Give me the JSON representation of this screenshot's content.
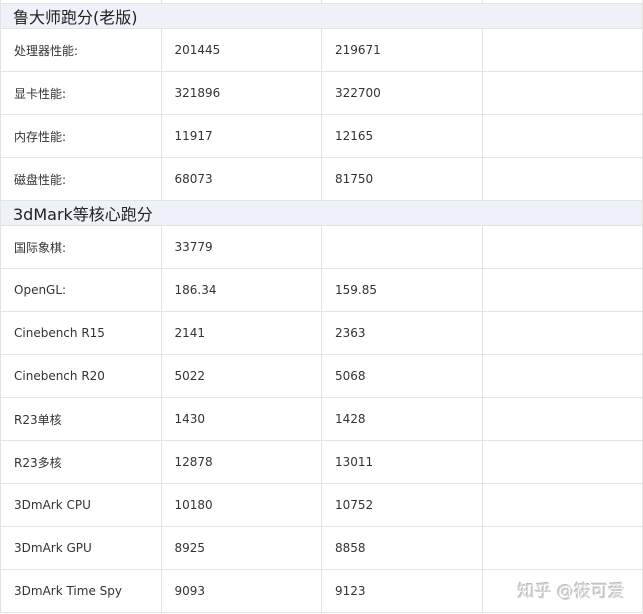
{
  "sections": [
    {
      "title": "鲁大师跑分(老版)",
      "rows": [
        [
          "处理器性能:",
          "201445",
          "219671",
          ""
        ],
        [
          "显卡性能:",
          "321896",
          "322700",
          ""
        ],
        [
          "内存性能:",
          "11917",
          "12165",
          ""
        ],
        [
          "磁盘性能:",
          "68073",
          "81750",
          ""
        ]
      ]
    },
    {
      "title": "3dMark等核心跑分",
      "rows": [
        [
          "国际象棋:",
          "33779",
          "",
          ""
        ],
        [
          "OpenGL:",
          "186.34",
          "159.85",
          ""
        ],
        [
          "Cinebench R15",
          "2141",
          "2363",
          ""
        ],
        [
          "Cinebench R20",
          "5022",
          "5068",
          ""
        ],
        [
          "R23单核",
          "1430",
          "1428",
          ""
        ],
        [
          "R23多核",
          "12878",
          "13011",
          ""
        ],
        [
          "3DmArk CPU",
          "10180",
          "10752",
          ""
        ],
        [
          "3DmArk GPU",
          "8925",
          "8858",
          ""
        ],
        [
          "3DmArk Time Spy",
          "9093",
          "9123",
          ""
        ]
      ]
    }
  ],
  "watermark": "知乎 @筱可爱"
}
